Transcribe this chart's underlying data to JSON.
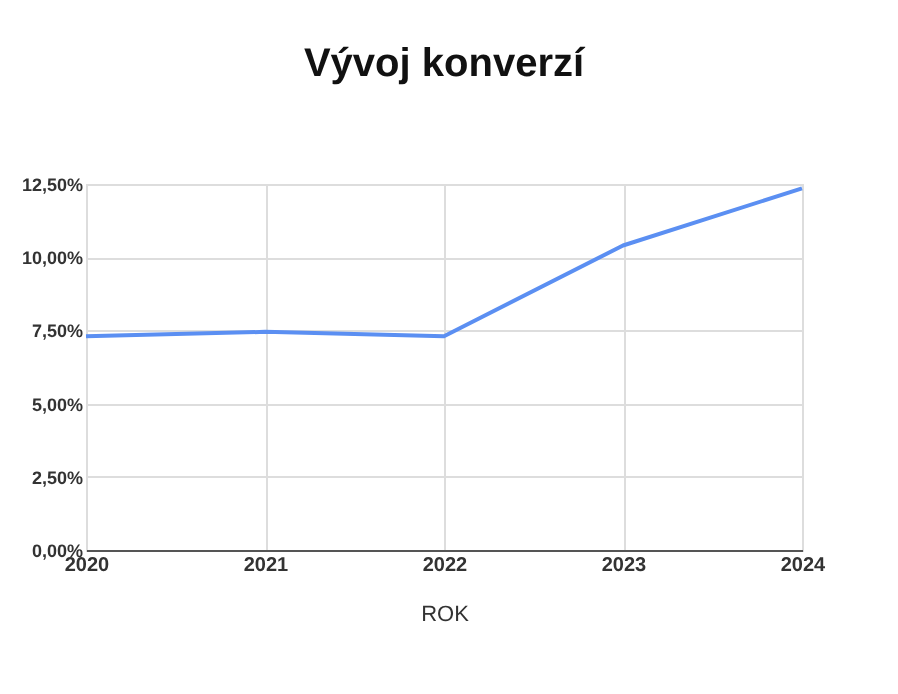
{
  "chart_data": {
    "type": "line",
    "title": "Vývoj konverzí",
    "xlabel": "ROK",
    "categories": [
      "2020",
      "2021",
      "2022",
      "2023",
      "2024"
    ],
    "series": [
      {
        "color": "#5b8ff2",
        "values": [
          7.3,
          7.45,
          7.3,
          10.4,
          12.35
        ]
      }
    ],
    "ylim": [
      0,
      12.5
    ],
    "yticks": [
      {
        "value": 0,
        "label": "0,00%"
      },
      {
        "value": 2.5,
        "label": "2,50%"
      },
      {
        "value": 5,
        "label": "5,00%"
      },
      {
        "value": 7.5,
        "label": "7,50%"
      },
      {
        "value": 10,
        "label": "10,00%"
      },
      {
        "value": 12.5,
        "label": "12,50%"
      }
    ],
    "grid": true,
    "legend": false,
    "marker": "none",
    "line_style": "solid"
  }
}
